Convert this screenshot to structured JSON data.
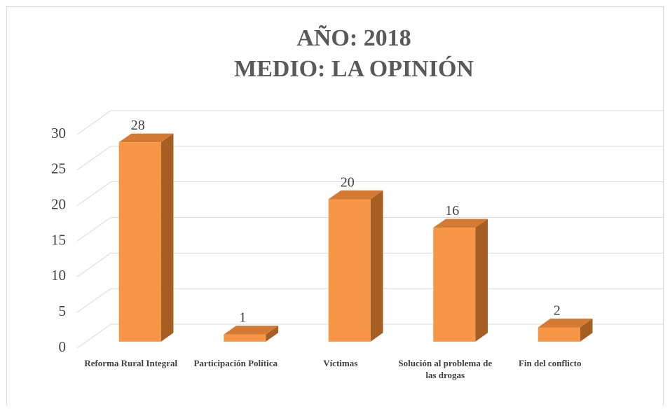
{
  "chart_data": {
    "type": "bar3d",
    "title": "AÑO:  2018",
    "subtitle": "MEDIO:  LA OPINIÓN",
    "categories": [
      "Reforma Rural Integral",
      "Participación Política",
      "Víctimas",
      "Solución al problema de las drogas",
      "Fin del conflicto"
    ],
    "values": [
      28,
      1,
      20,
      16,
      2
    ],
    "color": "#f79646",
    "ylim": [
      0,
      30
    ],
    "yticks": [
      0,
      5,
      10,
      15,
      20,
      25,
      30
    ],
    "grid": true
  }
}
